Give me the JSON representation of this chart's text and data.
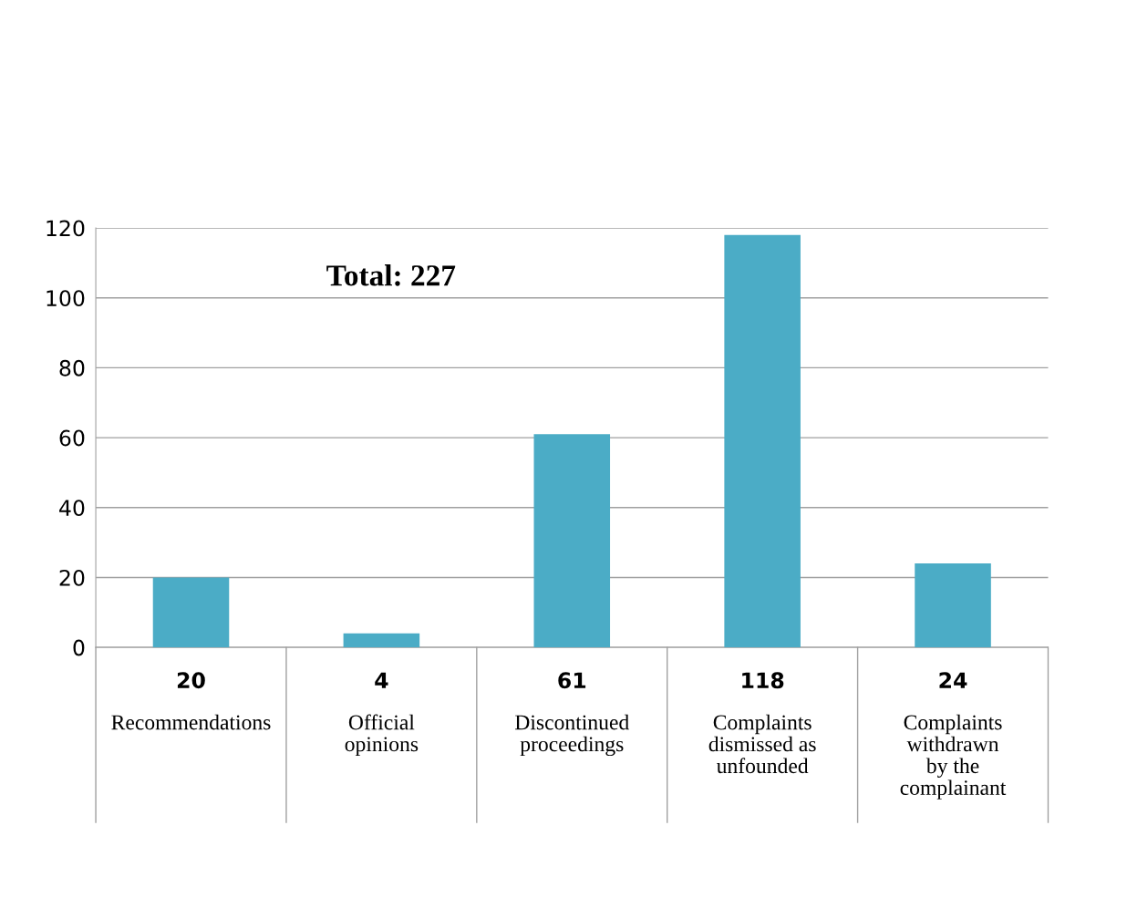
{
  "chart_data": {
    "type": "bar",
    "categories": [
      "Recommendations",
      "Official\nopinions",
      "Discontinued\nproceedings",
      "Complaints\ndismissed as\nunfounded",
      "Complaints\nwithdrawn\nby the\ncomplainant"
    ],
    "values": [
      20,
      4,
      61,
      118,
      24
    ],
    "color": "#4bacc6",
    "ylim": [
      0,
      120
    ],
    "yticks": [
      0,
      20,
      40,
      60,
      80,
      100,
      120
    ],
    "grid": "y",
    "legend": false,
    "data_labels": true,
    "annotations": [
      "Total: 227"
    ]
  }
}
